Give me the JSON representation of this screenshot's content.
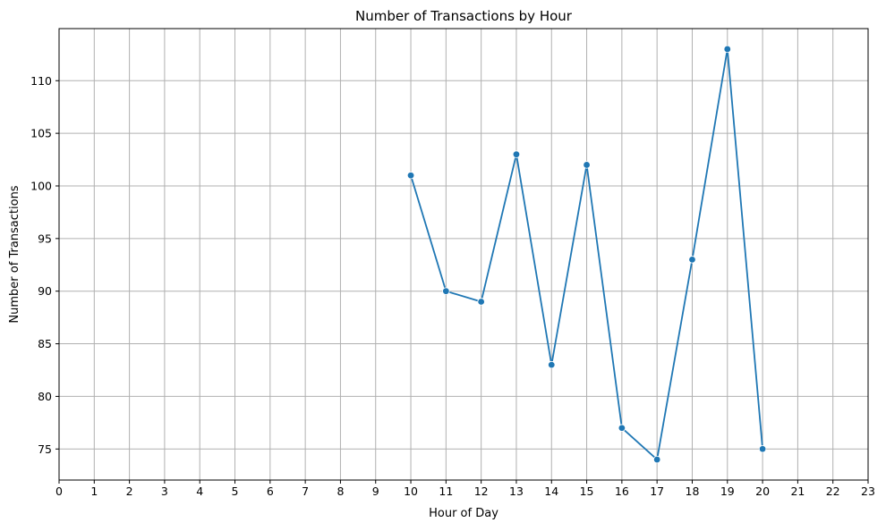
{
  "chart_data": {
    "type": "line",
    "title": "Number of Transactions by Hour",
    "xlabel": "Hour of Day",
    "ylabel": "Number of Transactions",
    "xlim": [
      0,
      23
    ],
    "ylim": [
      72.05,
      114.95
    ],
    "x_ticks": [
      0,
      1,
      2,
      3,
      4,
      5,
      6,
      7,
      8,
      9,
      10,
      11,
      12,
      13,
      14,
      15,
      16,
      17,
      18,
      19,
      20,
      21,
      22,
      23
    ],
    "y_ticks": [
      75,
      80,
      85,
      90,
      95,
      100,
      105,
      110
    ],
    "grid": true,
    "series": [
      {
        "color": "#1f77b4",
        "marker": "circle",
        "x": [
          10,
          11,
          12,
          13,
          14,
          15,
          16,
          17,
          18,
          19,
          20
        ],
        "y": [
          101,
          90,
          89,
          103,
          83,
          102,
          77,
          74,
          93,
          113,
          75
        ]
      }
    ]
  },
  "colors": {
    "line": "#1f77b4",
    "grid": "#b0b0b0",
    "axis": "#000000"
  }
}
